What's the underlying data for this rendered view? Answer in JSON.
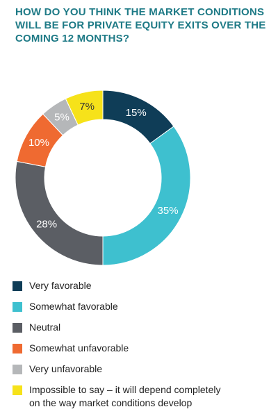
{
  "title": "HOW DO YOU THINK THE MARKET CONDITIONS WILL BE FOR PRIVATE EQUITY EXITS OVER THE COMING 12 MONTHS?",
  "chart_data": {
    "type": "pie",
    "donut": true,
    "series": [
      {
        "name": "Very favorable",
        "value": 15,
        "label": "15%",
        "color": "#0f3d57",
        "label_color": "#ffffff"
      },
      {
        "name": "Somewhat favorable",
        "value": 35,
        "label": "35%",
        "color": "#3ec0cf",
        "label_color": "#ffffff"
      },
      {
        "name": "Neutral",
        "value": 28,
        "label": "28%",
        "color": "#5b5e64",
        "label_color": "#ffffff"
      },
      {
        "name": "Somewhat unfavorable",
        "value": 10,
        "label": "10%",
        "color": "#ef6a31",
        "label_color": "#ffffff"
      },
      {
        "name": "Very unfavorable",
        "value": 5,
        "label": "5%",
        "color": "#b5b7b9",
        "label_color": "#ffffff"
      },
      {
        "name": "Impossible to say – it will depend completely on the way market conditions develop",
        "value": 7,
        "label": "7%",
        "color": "#f6e21a",
        "label_color": "#333333"
      }
    ],
    "start": "12 o'clock",
    "direction": "clockwise",
    "legend_position": "bottom"
  },
  "legend": {
    "items": [
      {
        "line1": "Very favorable",
        "line2": ""
      },
      {
        "line1": "Somewhat favorable",
        "line2": ""
      },
      {
        "line1": "Neutral",
        "line2": ""
      },
      {
        "line1": "Somewhat unfavorable",
        "line2": ""
      },
      {
        "line1": "Very unfavorable",
        "line2": ""
      },
      {
        "line1": "Impossible to say – it will depend completely",
        "line2": "on the way market conditions develop"
      }
    ]
  }
}
